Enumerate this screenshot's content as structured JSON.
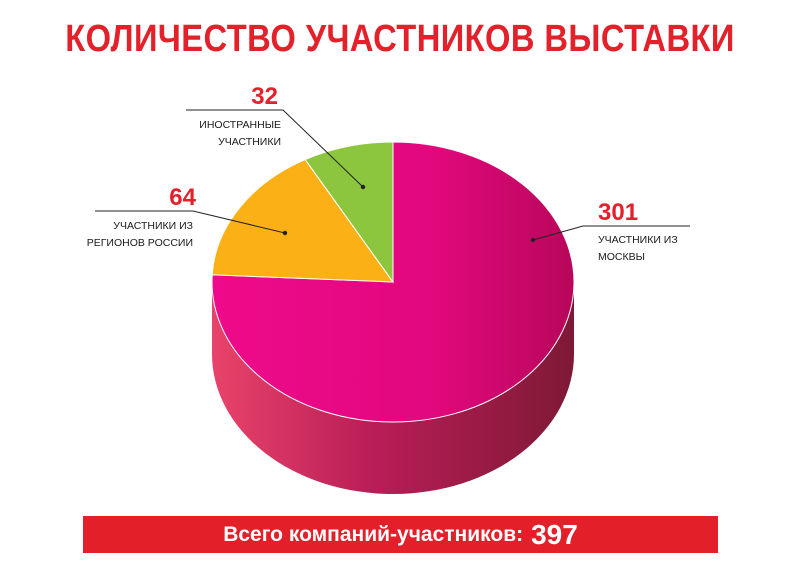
{
  "title": "КОЛИЧЕСТВО УЧАСТНИКОВ ВЫСТАВКИ",
  "chart_data": {
    "type": "pie",
    "title": "КОЛИЧЕСТВО УЧАСТНИКОВ ВЫСТАВКИ",
    "slices": [
      {
        "value": 301,
        "label_lines": [
          "УЧАСТНИКИ ИЗ",
          "МОСКВЫ"
        ],
        "color": "#e6087f"
      },
      {
        "value": 64,
        "label_lines": [
          "УЧАСТНИКИ ИЗ",
          "РЕГИОНОВ РОССИИ"
        ],
        "color": "#fbb116"
      },
      {
        "value": 32,
        "label_lines": [
          "ИНОСТРАННЫЕ",
          "УЧАСТНИКИ"
        ],
        "color": "#8cc63e"
      }
    ],
    "total": 397
  },
  "footer": {
    "text": "Всего компаний-участников:",
    "total": "397"
  }
}
